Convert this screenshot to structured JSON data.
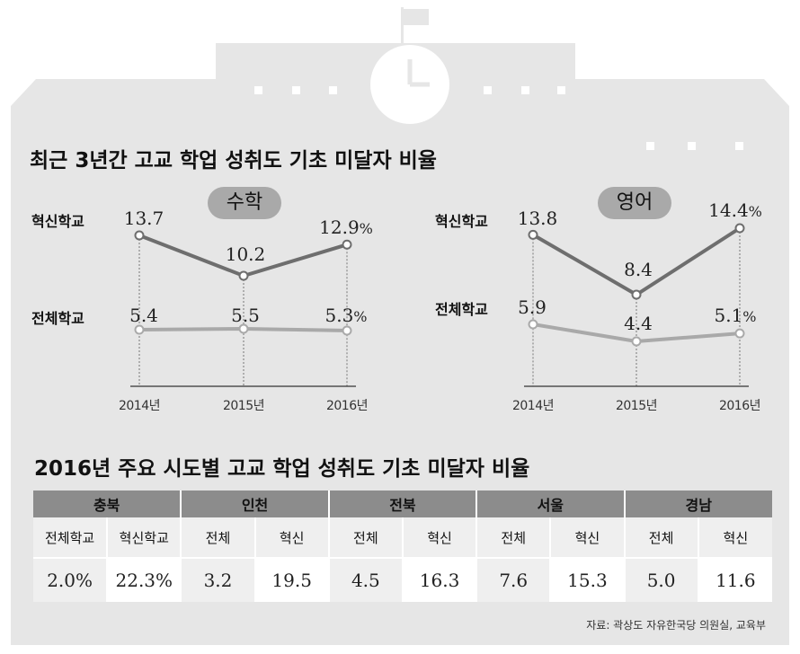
{
  "colors": {
    "dark_line": "#6e6e6e",
    "light_line": "#a9a9a9",
    "panel_bg": "#e6e6e6",
    "header_cell": "#8c8c8c"
  },
  "icons": [
    "clock-icon",
    "flag-icon"
  ],
  "title1": "최근 3년간 고교 학업 성취도 기초 미달자 비율",
  "title2": "2016년 주요 시도별 고교 학업 성취도 기초 미달자 비율",
  "chart_data": [
    {
      "type": "line",
      "title": "수학",
      "x": [
        "2014년",
        "2015년",
        "2016년"
      ],
      "series": [
        {
          "name": "혁신학교",
          "values": [
            13.7,
            10.2,
            12.9
          ],
          "labels": [
            "13.7",
            "10.2",
            "12.9"
          ]
        },
        {
          "name": "전체학교",
          "values": [
            5.4,
            5.5,
            5.3
          ],
          "labels": [
            "5.4",
            "5.5",
            "5.3"
          ]
        }
      ],
      "unit": "%"
    },
    {
      "type": "line",
      "title": "영어",
      "x": [
        "2014년",
        "2015년",
        "2016년"
      ],
      "series": [
        {
          "name": "혁신학교",
          "values": [
            13.8,
            8.4,
            14.4
          ],
          "labels": [
            "13.8",
            "8.4",
            "14.4"
          ]
        },
        {
          "name": "전체학교",
          "values": [
            5.9,
            4.4,
            5.1
          ],
          "labels": [
            "5.9",
            "4.4",
            "5.1"
          ]
        }
      ],
      "unit": "%"
    },
    {
      "type": "table",
      "regions": [
        "충북",
        "인천",
        "전북",
        "서울",
        "경남"
      ],
      "sub_headers": [
        "전체학교",
        "혁신학교",
        "전체",
        "혁신",
        "전체",
        "혁신",
        "전체",
        "혁신",
        "전체",
        "혁신"
      ],
      "values": [
        "2.0%",
        "22.3%",
        "3.2",
        "19.5",
        "4.5",
        "16.3",
        "7.6",
        "15.3",
        "5.0",
        "11.6"
      ]
    }
  ],
  "source": "자료: 곽상도 자유한국당 의원실, 교육부"
}
